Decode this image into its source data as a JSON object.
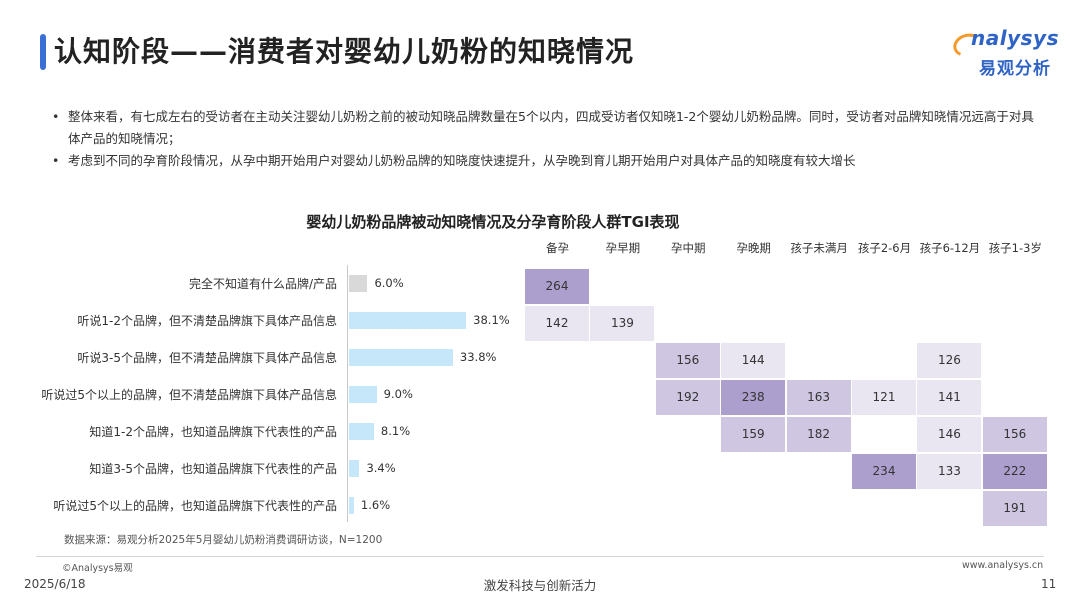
{
  "page": {
    "title": "认知阶段——消费者对婴幼儿奶粉的知晓情况",
    "logo_en": "nalysys",
    "logo_cn": "易观分析",
    "bullets": [
      "整体来看，有七成左右的受访者在主动关注婴幼儿奶粉之前的被动知晓品牌数量在5个以内，四成受访者仅知晓1-2个婴幼儿奶粉品牌。同时，受访者对品牌知晓情况远高于对具体产品的知晓情况；",
      "考虑到不同的孕育阶段情况，从孕中期开始用户对婴幼儿奶粉品牌的知晓度快速提升，从孕晚到育儿期开始用户对具体产品的知晓度有较大增长"
    ],
    "source": "数据来源：易观分析2025年5月婴幼儿奶粉消费调研访谈，N=1200",
    "copyright": "©Analysys易观",
    "website": "www.analysys.cn",
    "date": "2025/6/18",
    "slogan": "激发科技与创新活力",
    "page_number": "11"
  },
  "colors": {
    "accent": "#3b6fd6",
    "bar_blue": "#c6e6fa",
    "bar_gray": "#d9d9d9",
    "tgi_low": "#e9e6f2",
    "tgi_mid": "#cfc6e2",
    "tgi_high": "#ad9fcd"
  },
  "chart_data": {
    "title": "婴幼儿奶粉品牌被动知晓情况及分孕育阶段人群TGI表现",
    "bar": {
      "type": "bar",
      "orientation": "horizontal",
      "categories": [
        "完全不知道有什么品牌/产品",
        "听说1-2个品牌，但不清楚品牌旗下具体产品信息",
        "听说3-5个品牌，但不清楚品牌旗下具体产品信息",
        "听说过5个以上的品牌，但不清楚品牌旗下具体产品信息",
        "知道1-2个品牌，也知道品牌旗下代表性的产品",
        "知道3-5个品牌，也知道品牌旗下代表性的产品",
        "听说过5个以上的品牌，也知道品牌旗下代表性的产品"
      ],
      "values": [
        6.0,
        38.1,
        33.8,
        9.0,
        8.1,
        3.4,
        1.6
      ],
      "value_labels": [
        "6.0%",
        "38.1%",
        "33.8%",
        "9.0%",
        "8.1%",
        "3.4%",
        "1.6%"
      ],
      "xlim": [
        0,
        40
      ]
    },
    "tgi": {
      "type": "heatmap",
      "columns": [
        "备孕",
        "孕早期",
        "孕中期",
        "孕晚期",
        "孩子未满月",
        "孩子2-6月",
        "孩子6-12月",
        "孩子1-3岁"
      ],
      "rows": [
        [
          264,
          null,
          null,
          null,
          null,
          null,
          null,
          null
        ],
        [
          142,
          139,
          null,
          null,
          null,
          null,
          null,
          null
        ],
        [
          null,
          null,
          156,
          144,
          null,
          null,
          126,
          null
        ],
        [
          null,
          null,
          192,
          238,
          163,
          121,
          141,
          null
        ],
        [
          null,
          null,
          null,
          159,
          182,
          null,
          146,
          156
        ],
        [
          null,
          null,
          null,
          null,
          null,
          234,
          133,
          222
        ],
        [
          null,
          null,
          null,
          null,
          null,
          null,
          null,
          191
        ]
      ]
    }
  }
}
